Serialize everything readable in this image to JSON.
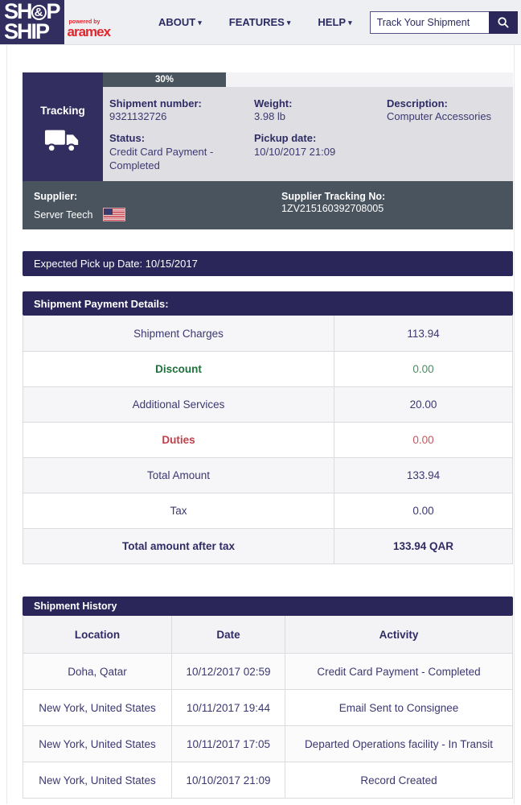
{
  "header": {
    "logo": {
      "line1_pre": "SH",
      "line1_amp": "&",
      "line1_post": "P",
      "line2": "SHIP",
      "powered_by": "powered by",
      "brand": "aramex"
    },
    "nav": [
      {
        "label": "ABOUT"
      },
      {
        "label": "FEATURES"
      },
      {
        "label": "HELP"
      }
    ],
    "search": {
      "value": "Track Your Shipment"
    }
  },
  "tracking": {
    "sidebar_label": "Tracking",
    "progress": {
      "percent_label": "30%",
      "value": 30
    },
    "fields": {
      "shipment_number_label": "Shipment number:",
      "shipment_number": "9321132726",
      "status_label": "Status:",
      "status": "Credit Card Payment - Completed",
      "weight_label": "Weight:",
      "weight": "3.98 lb",
      "pickup_date_label": "Pickup date:",
      "pickup_date": "10/10/2017 21:09",
      "description_label": "Description:",
      "description": "Computer Accessories"
    },
    "supplier": {
      "label": "Supplier:",
      "name": "Server Teech",
      "tracking_label": "Supplier Tracking No:",
      "tracking_no": "1ZV215160392708005"
    }
  },
  "expected_pickup_text": "Expected Pick up Date: 10/15/2017",
  "payment": {
    "title": "Shipment Payment Details:",
    "rows": [
      {
        "label": "Shipment Charges",
        "value": "113.94",
        "style": "normal"
      },
      {
        "label": "Discount",
        "value": "0.00",
        "style": "green"
      },
      {
        "label": "Additional Services",
        "value": "20.00",
        "style": "normal"
      },
      {
        "label": "Duties",
        "value": "0.00",
        "style": "red"
      },
      {
        "label": "Total Amount",
        "value": "133.94",
        "style": "normal"
      },
      {
        "label": "Tax",
        "value": "0.00",
        "style": "normal"
      },
      {
        "label": "Total amount after tax",
        "value": "133.94 QAR",
        "style": "bold"
      }
    ]
  },
  "history": {
    "title": "Shipment History",
    "columns": [
      "Location",
      "Date",
      "Activity"
    ],
    "rows": [
      [
        "Doha, Qatar",
        "10/12/2017 02:59",
        "Credit Card Payment - Completed"
      ],
      [
        "New York, United States",
        "10/11/2017 19:44",
        "Email Sent to Consignee"
      ],
      [
        "New York, United States",
        "10/11/2017 17:05",
        "Departed Operations facility - In Transit"
      ],
      [
        "New York, United States",
        "10/10/2017 21:09",
        "Record Created"
      ]
    ]
  },
  "colors": {
    "navy_bar": "#2b2659",
    "sidebar_navy": "#332e60",
    "slate": "#4a545e",
    "header_bg": "#edeff2",
    "info_bg": "#dfdfe3",
    "green": "#20703b",
    "red": "#bf4049",
    "aramex_red": "#e3262e"
  }
}
